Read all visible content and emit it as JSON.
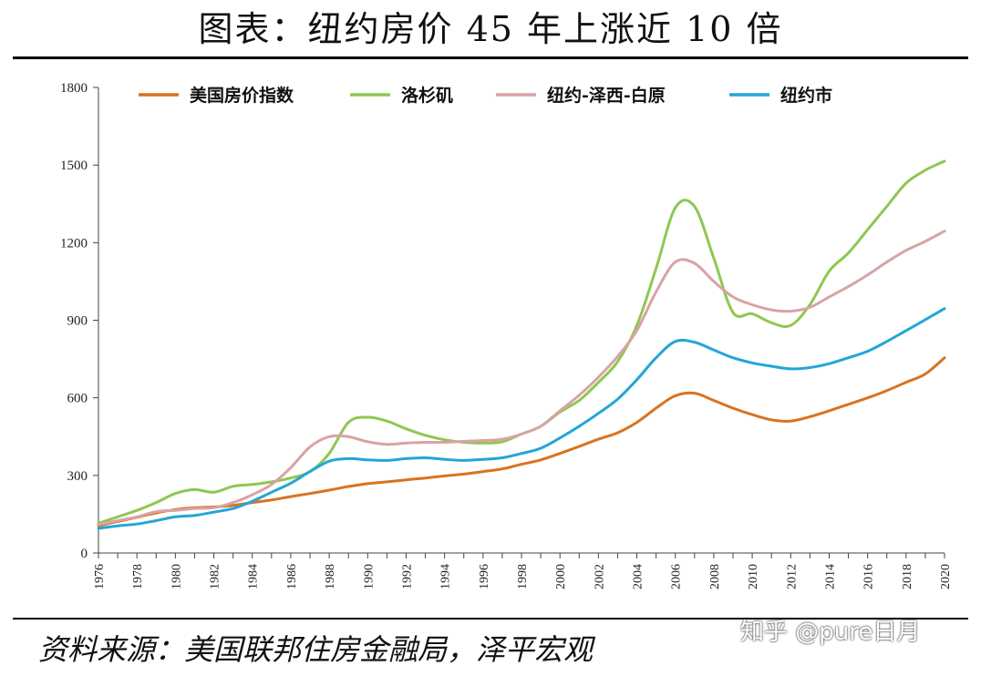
{
  "header": {
    "title": "图表：纽约房价 45 年上涨近 10 倍"
  },
  "footer": {
    "source": "资料来源：美国联邦住房金融局，泽平宏观",
    "watermark": "知乎 @pure日月"
  },
  "chart_data": {
    "type": "line",
    "title": "图表：纽约房价 45 年上涨近 10 倍",
    "xlabel": "",
    "ylabel": "",
    "xlim": [
      1976,
      2020
    ],
    "ylim": [
      0,
      1800
    ],
    "yticks": [
      0,
      300,
      600,
      900,
      1200,
      1500,
      1800
    ],
    "xticks": [
      1976,
      1978,
      1980,
      1982,
      1984,
      1986,
      1988,
      1990,
      1992,
      1994,
      1996,
      1998,
      2000,
      2002,
      2004,
      2006,
      2008,
      2010,
      2012,
      2014,
      2016,
      2018,
      2020
    ],
    "grid": false,
    "legend": "top",
    "x": [
      1976,
      1977,
      1978,
      1979,
      1980,
      1981,
      1982,
      1983,
      1984,
      1985,
      1986,
      1987,
      1988,
      1989,
      1990,
      1991,
      1992,
      1993,
      1994,
      1995,
      1996,
      1997,
      1998,
      1999,
      2000,
      2001,
      2002,
      2003,
      2004,
      2005,
      2006,
      2007,
      2008,
      2009,
      2010,
      2011,
      2012,
      2013,
      2014,
      2015,
      2016,
      2017,
      2018,
      2019,
      2020
    ],
    "series": [
      {
        "name": "美国房价指数",
        "color": "#d9731f",
        "values": [
          105,
          122,
          138,
          155,
          168,
          175,
          178,
          184,
          195,
          205,
          218,
          230,
          243,
          257,
          268,
          275,
          283,
          290,
          298,
          305,
          315,
          325,
          343,
          360,
          385,
          412,
          440,
          465,
          505,
          560,
          608,
          618,
          590,
          560,
          535,
          515,
          510,
          527,
          550,
          575,
          600,
          628,
          660,
          692,
          755
        ]
      },
      {
        "name": "洛杉矶",
        "color": "#8fc750",
        "values": [
          115,
          140,
          165,
          195,
          230,
          245,
          235,
          258,
          265,
          275,
          290,
          315,
          385,
          505,
          525,
          510,
          480,
          455,
          438,
          428,
          425,
          430,
          460,
          490,
          545,
          590,
          660,
          740,
          880,
          1100,
          1335,
          1340,
          1140,
          930,
          925,
          890,
          880,
          960,
          1090,
          1160,
          1250,
          1340,
          1430,
          1480,
          1515
        ]
      },
      {
        "name": "纽约-泽西-白原",
        "color": "#d8a3a6",
        "values": [
          110,
          125,
          140,
          160,
          165,
          172,
          175,
          195,
          225,
          265,
          330,
          410,
          450,
          450,
          430,
          420,
          425,
          428,
          428,
          432,
          435,
          440,
          460,
          490,
          550,
          610,
          680,
          760,
          860,
          1010,
          1125,
          1120,
          1050,
          990,
          960,
          940,
          935,
          950,
          990,
          1030,
          1075,
          1125,
          1170,
          1205,
          1245
        ]
      },
      {
        "name": "纽约市",
        "color": "#23a6d6",
        "values": [
          95,
          105,
          112,
          125,
          140,
          145,
          158,
          172,
          200,
          235,
          270,
          315,
          355,
          365,
          360,
          358,
          365,
          368,
          362,
          358,
          362,
          368,
          385,
          405,
          445,
          490,
          540,
          595,
          670,
          755,
          818,
          815,
          785,
          755,
          735,
          722,
          712,
          717,
          732,
          755,
          780,
          818,
          860,
          902,
          945
        ]
      }
    ]
  }
}
